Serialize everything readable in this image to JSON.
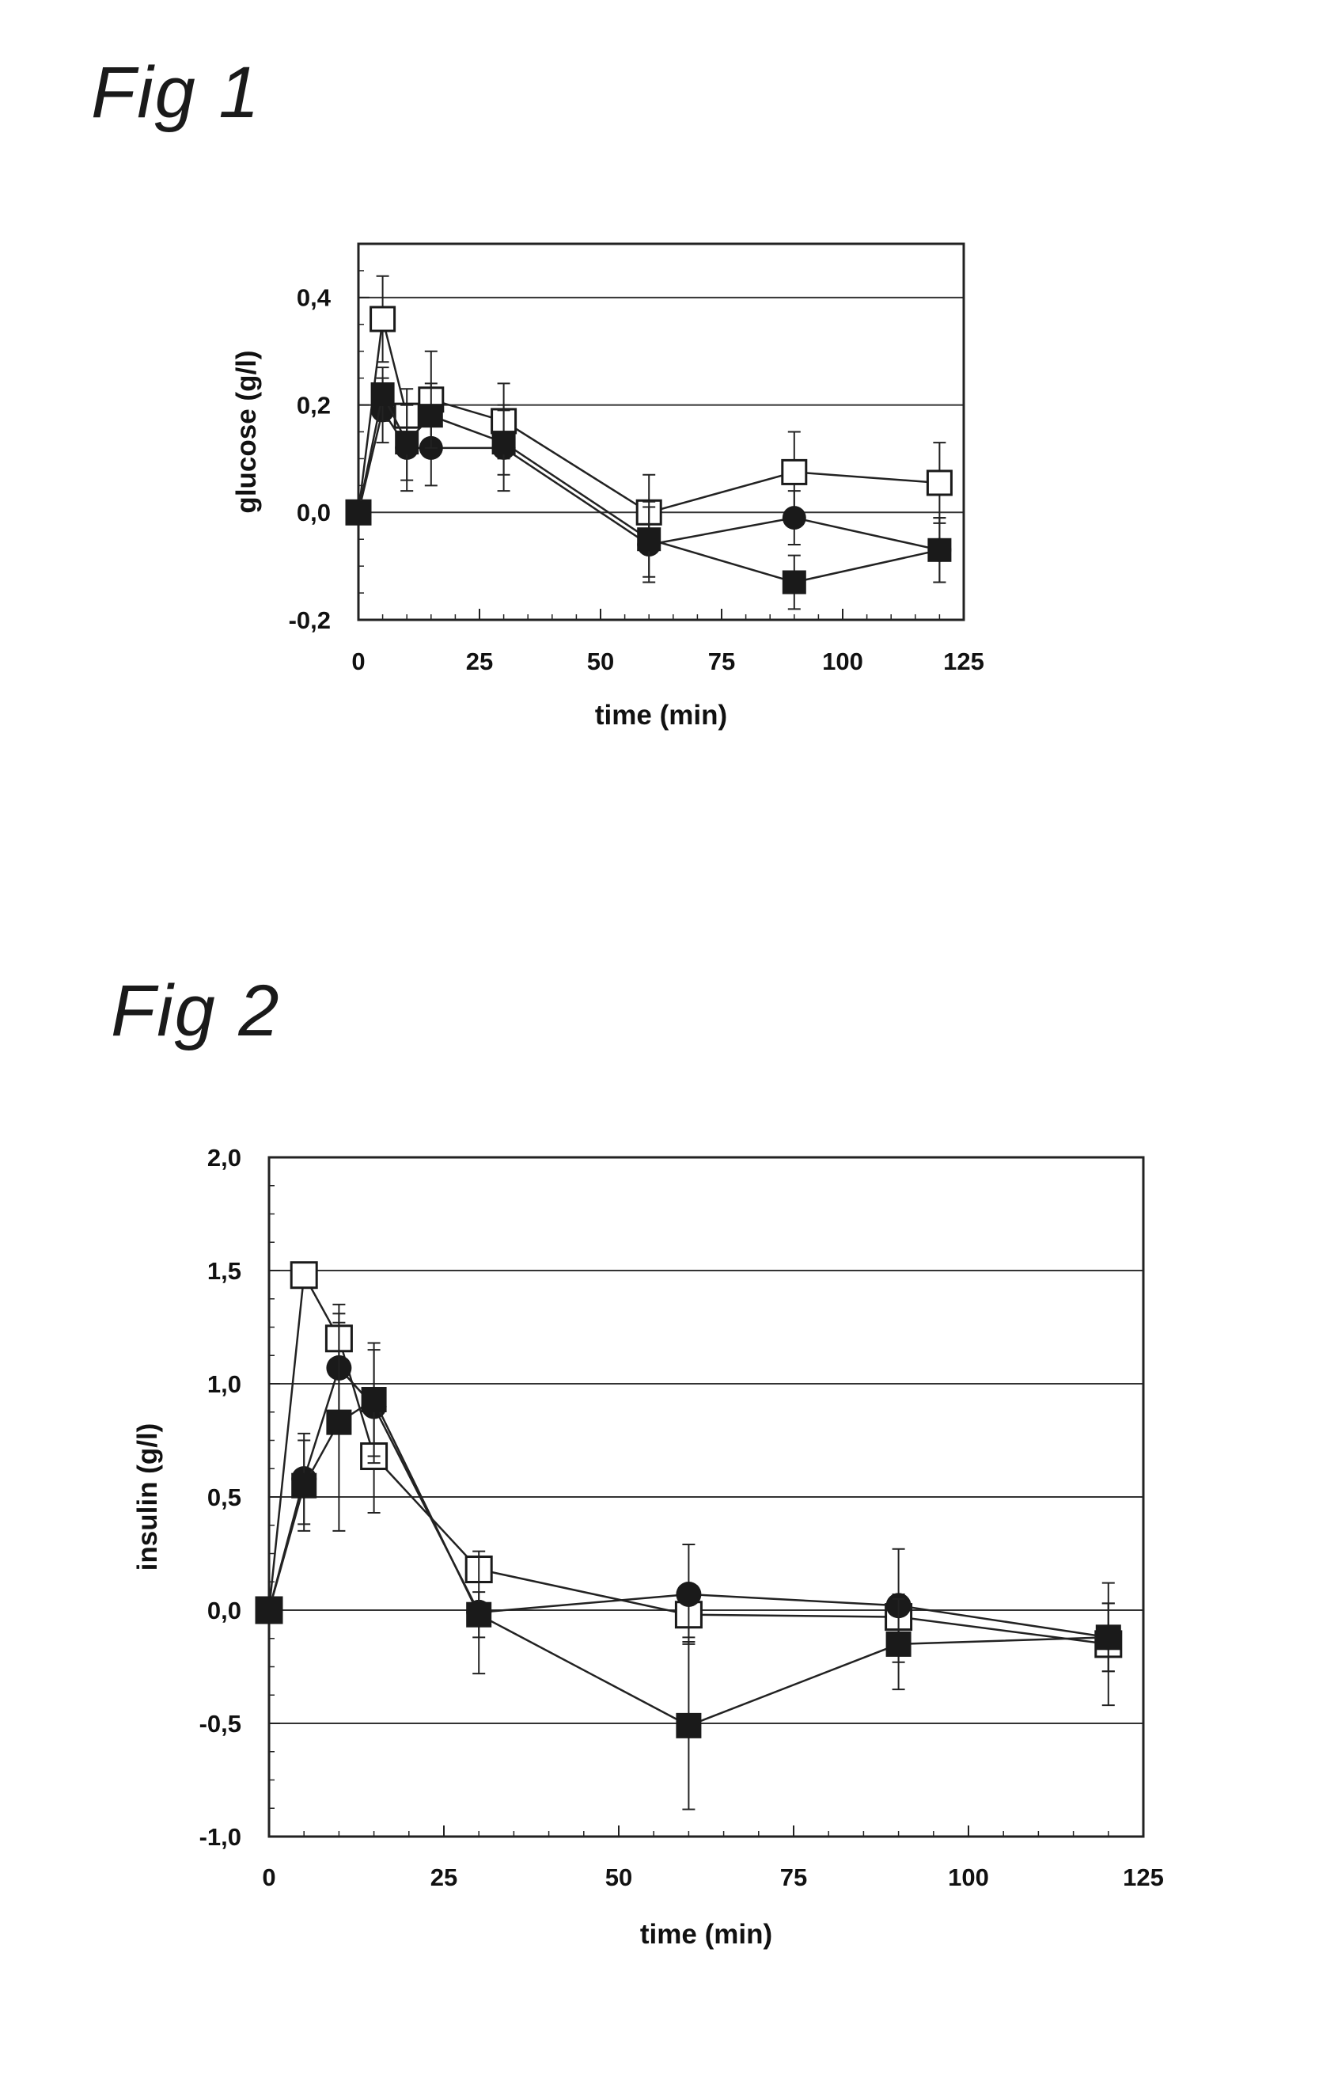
{
  "figures": [
    {
      "title": "Fig 1"
    },
    {
      "title": "Fig 2"
    }
  ],
  "chart_data": [
    {
      "type": "line",
      "xlabel": "time (min)",
      "ylabel": "glucose (g/l)",
      "xlim": [
        0,
        125
      ],
      "ylim": [
        -0.2,
        0.5
      ],
      "x_ticks": [
        "0",
        "25",
        "50",
        "75",
        "100",
        "125"
      ],
      "y_ticks": [
        "-0,2",
        "0,0",
        "0,2",
        "0,4"
      ],
      "y_tick_values": [
        -0.2,
        0.0,
        0.2,
        0.4
      ],
      "x_tick_values": [
        0,
        25,
        50,
        75,
        100,
        125
      ],
      "grid": "horizontal",
      "series": [
        {
          "marker": "open-square",
          "x": [
            0,
            5,
            10,
            15,
            30,
            60,
            90,
            120
          ],
          "y": [
            0.0,
            0.36,
            0.18,
            0.21,
            0.17,
            0.0,
            0.075,
            0.055
          ],
          "err": [
            0.0,
            0.08,
            0.05,
            0.09,
            0.07,
            0.07,
            0.075,
            0.075
          ]
        },
        {
          "marker": "filled-circle",
          "x": [
            0,
            5,
            10,
            15,
            30,
            60,
            90,
            120
          ],
          "y": [
            0.0,
            0.19,
            0.12,
            0.12,
            0.12,
            -0.06,
            -0.01,
            -0.07
          ],
          "err": [
            0.0,
            0.06,
            0.08,
            0.07,
            0.08,
            0.07,
            0.05,
            0.06
          ]
        },
        {
          "marker": "filled-square",
          "x": [
            0,
            5,
            10,
            15,
            30,
            60,
            90,
            120
          ],
          "y": [
            0.0,
            0.22,
            0.13,
            0.18,
            0.13,
            -0.05,
            -0.13,
            -0.07
          ],
          "err": [
            0.0,
            0.05,
            0.07,
            0.06,
            0.06,
            0.07,
            0.05,
            0.06
          ]
        }
      ]
    },
    {
      "type": "line",
      "xlabel": "time (min)",
      "ylabel": "insulin (g/l)",
      "xlim": [
        0,
        125
      ],
      "ylim": [
        -1.0,
        2.0
      ],
      "x_ticks": [
        "0",
        "25",
        "50",
        "75",
        "100",
        "125"
      ],
      "y_ticks": [
        "-1,0",
        "-0,5",
        "0,0",
        "0,5",
        "1,0",
        "1,5",
        "2,0"
      ],
      "y_tick_values": [
        -1.0,
        -0.5,
        0.0,
        0.5,
        1.0,
        1.5,
        2.0
      ],
      "x_tick_values": [
        0,
        25,
        50,
        75,
        100,
        125
      ],
      "grid": "horizontal",
      "series": [
        {
          "marker": "open-square",
          "x": [
            0,
            5,
            10,
            15,
            30,
            60,
            90,
            120
          ],
          "y": [
            0.0,
            1.48,
            1.2,
            0.68,
            0.18,
            -0.02,
            -0.03,
            -0.15
          ],
          "err": [
            0.0,
            0.0,
            0.15,
            0.25,
            0.05,
            0.1,
            0.1,
            0.27
          ]
        },
        {
          "marker": "filled-circle",
          "x": [
            0,
            5,
            10,
            15,
            30,
            60,
            90,
            120
          ],
          "y": [
            0.0,
            0.58,
            1.07,
            0.9,
            -0.01,
            0.07,
            0.02,
            -0.12
          ],
          "err": [
            0.0,
            0.2,
            0.2,
            0.25,
            0.27,
            0.22,
            0.25,
            0.15
          ]
        },
        {
          "marker": "filled-square",
          "x": [
            0,
            5,
            10,
            15,
            30,
            60,
            90,
            120
          ],
          "y": [
            0.0,
            0.55,
            0.83,
            0.93,
            -0.02,
            -0.51,
            -0.15,
            -0.12
          ],
          "err": [
            0.0,
            0.2,
            0.48,
            0.25,
            0.1,
            0.37,
            0.2,
            0.15
          ]
        }
      ]
    }
  ]
}
